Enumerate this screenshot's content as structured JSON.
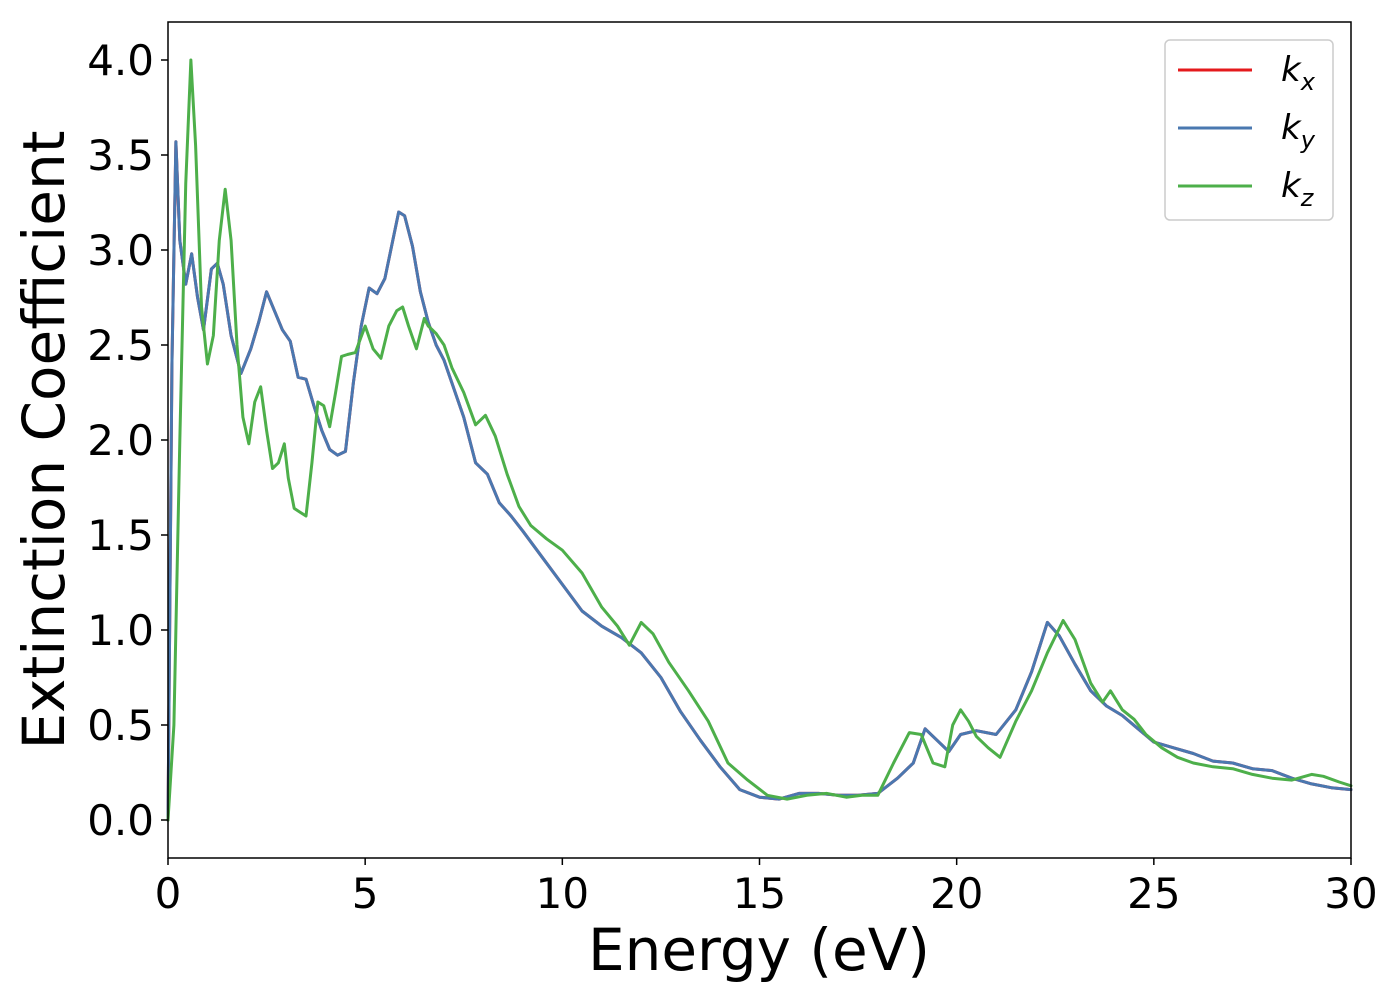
{
  "chart_data": {
    "type": "line",
    "xlabel": "Energy (eV)",
    "ylabel": "Extinction Coefficient",
    "xlim": [
      0,
      30
    ],
    "ylim": [
      -0.2,
      4.2
    ],
    "xticks": [
      0,
      5,
      10,
      15,
      20,
      25,
      30
    ],
    "xtick_labels": [
      "0",
      "5",
      "10",
      "15",
      "20",
      "25",
      "30"
    ],
    "yticks": [
      0.0,
      0.5,
      1.0,
      1.5,
      2.0,
      2.5,
      3.0,
      3.5,
      4.0
    ],
    "ytick_labels": [
      "0.0",
      "0.5",
      "1.0",
      "1.5",
      "2.0",
      "2.5",
      "3.0",
      "3.5",
      "4.0"
    ],
    "grid": false,
    "legend_position": "top-right",
    "series": [
      {
        "name": "k",
        "subscript": "x",
        "color": "#e41a1c",
        "x": [
          0,
          0.1,
          0.2,
          0.3,
          0.45,
          0.6,
          0.75,
          0.9,
          1.1,
          1.25,
          1.4,
          1.6,
          1.85,
          2.1,
          2.3,
          2.5,
          2.7,
          2.9,
          3.1,
          3.3,
          3.5,
          3.7,
          3.9,
          4.1,
          4.3,
          4.5,
          4.7,
          4.9,
          5.1,
          5.3,
          5.5,
          5.7,
          5.85,
          6.0,
          6.2,
          6.4,
          6.6,
          6.8,
          7.0,
          7.2,
          7.5,
          7.8,
          8.1,
          8.4,
          8.7,
          9.0,
          9.5,
          10.0,
          10.5,
          11.0,
          11.5,
          12.0,
          12.5,
          13.0,
          13.5,
          14.0,
          14.5,
          15.0,
          15.5,
          16.0,
          16.5,
          17.0,
          17.5,
          18.0,
          18.5,
          18.9,
          19.2,
          19.5,
          19.8,
          20.1,
          20.5,
          21.0,
          21.5,
          21.9,
          22.3,
          22.6,
          23.0,
          23.4,
          23.8,
          24.2,
          24.6,
          25.0,
          25.5,
          26.0,
          26.5,
          27.0,
          27.5,
          28.0,
          28.5,
          29.0,
          29.5,
          30.0
        ],
        "y": [
          0.0,
          2.4,
          3.57,
          3.05,
          2.82,
          2.98,
          2.75,
          2.58,
          2.9,
          2.93,
          2.82,
          2.55,
          2.35,
          2.48,
          2.62,
          2.78,
          2.68,
          2.58,
          2.52,
          2.33,
          2.32,
          2.18,
          2.05,
          1.95,
          1.92,
          1.94,
          2.3,
          2.6,
          2.8,
          2.77,
          2.85,
          3.05,
          3.2,
          3.18,
          3.02,
          2.78,
          2.62,
          2.5,
          2.42,
          2.3,
          2.12,
          1.88,
          1.82,
          1.67,
          1.6,
          1.52,
          1.38,
          1.24,
          1.1,
          1.02,
          0.96,
          0.88,
          0.75,
          0.57,
          0.42,
          0.28,
          0.16,
          0.12,
          0.11,
          0.14,
          0.14,
          0.13,
          0.13,
          0.14,
          0.22,
          0.3,
          0.48,
          0.42,
          0.36,
          0.45,
          0.47,
          0.45,
          0.58,
          0.78,
          1.04,
          0.97,
          0.82,
          0.68,
          0.6,
          0.55,
          0.48,
          0.41,
          0.38,
          0.35,
          0.31,
          0.3,
          0.27,
          0.26,
          0.22,
          0.19,
          0.17,
          0.16
        ]
      },
      {
        "name": "k",
        "subscript": "y",
        "color": "#4a78b0",
        "x": [
          0,
          0.1,
          0.2,
          0.3,
          0.45,
          0.6,
          0.75,
          0.9,
          1.1,
          1.25,
          1.4,
          1.6,
          1.85,
          2.1,
          2.3,
          2.5,
          2.7,
          2.9,
          3.1,
          3.3,
          3.5,
          3.7,
          3.9,
          4.1,
          4.3,
          4.5,
          4.7,
          4.9,
          5.1,
          5.3,
          5.5,
          5.7,
          5.85,
          6.0,
          6.2,
          6.4,
          6.6,
          6.8,
          7.0,
          7.2,
          7.5,
          7.8,
          8.1,
          8.4,
          8.7,
          9.0,
          9.5,
          10.0,
          10.5,
          11.0,
          11.5,
          12.0,
          12.5,
          13.0,
          13.5,
          14.0,
          14.5,
          15.0,
          15.5,
          16.0,
          16.5,
          17.0,
          17.5,
          18.0,
          18.5,
          18.9,
          19.2,
          19.5,
          19.8,
          20.1,
          20.5,
          21.0,
          21.5,
          21.9,
          22.3,
          22.6,
          23.0,
          23.4,
          23.8,
          24.2,
          24.6,
          25.0,
          25.5,
          26.0,
          26.5,
          27.0,
          27.5,
          28.0,
          28.5,
          29.0,
          29.5,
          30.0
        ],
        "y": [
          0.0,
          2.4,
          3.57,
          3.05,
          2.82,
          2.98,
          2.75,
          2.58,
          2.9,
          2.93,
          2.82,
          2.55,
          2.35,
          2.48,
          2.62,
          2.78,
          2.68,
          2.58,
          2.52,
          2.33,
          2.32,
          2.18,
          2.05,
          1.95,
          1.92,
          1.94,
          2.3,
          2.6,
          2.8,
          2.77,
          2.85,
          3.05,
          3.2,
          3.18,
          3.02,
          2.78,
          2.62,
          2.5,
          2.42,
          2.3,
          2.12,
          1.88,
          1.82,
          1.67,
          1.6,
          1.52,
          1.38,
          1.24,
          1.1,
          1.02,
          0.96,
          0.88,
          0.75,
          0.57,
          0.42,
          0.28,
          0.16,
          0.12,
          0.11,
          0.14,
          0.14,
          0.13,
          0.13,
          0.14,
          0.22,
          0.3,
          0.48,
          0.42,
          0.36,
          0.45,
          0.47,
          0.45,
          0.58,
          0.78,
          1.04,
          0.97,
          0.82,
          0.68,
          0.6,
          0.55,
          0.48,
          0.41,
          0.38,
          0.35,
          0.31,
          0.3,
          0.27,
          0.26,
          0.22,
          0.19,
          0.17,
          0.16
        ]
      },
      {
        "name": "k",
        "subscript": "z",
        "color": "#4daf4a",
        "x": [
          0,
          0.15,
          0.3,
          0.45,
          0.58,
          0.7,
          0.85,
          1.0,
          1.15,
          1.3,
          1.45,
          1.6,
          1.75,
          1.9,
          2.05,
          2.2,
          2.35,
          2.5,
          2.65,
          2.8,
          2.95,
          3.05,
          3.2,
          3.35,
          3.5,
          3.65,
          3.8,
          3.95,
          4.1,
          4.25,
          4.4,
          4.55,
          4.75,
          5.0,
          5.2,
          5.4,
          5.6,
          5.8,
          5.95,
          6.1,
          6.3,
          6.5,
          6.6,
          6.8,
          7.0,
          7.2,
          7.5,
          7.8,
          8.05,
          8.3,
          8.6,
          8.9,
          9.2,
          9.6,
          10.0,
          10.5,
          11.0,
          11.4,
          11.7,
          12.0,
          12.3,
          12.7,
          13.2,
          13.7,
          14.2,
          14.7,
          15.2,
          15.7,
          16.2,
          16.7,
          17.2,
          17.6,
          18.0,
          18.4,
          18.8,
          19.1,
          19.4,
          19.7,
          19.9,
          20.1,
          20.3,
          20.5,
          20.8,
          21.1,
          21.5,
          21.9,
          22.3,
          22.7,
          23.0,
          23.4,
          23.7,
          23.9,
          24.2,
          24.5,
          24.8,
          25.2,
          25.6,
          26.0,
          26.5,
          27.0,
          27.5,
          28.0,
          28.5,
          29.0,
          29.3,
          29.7,
          30.0
        ],
        "y": [
          0.0,
          0.5,
          2.0,
          3.35,
          4.0,
          3.55,
          2.7,
          2.4,
          2.55,
          3.05,
          3.32,
          3.05,
          2.5,
          2.12,
          1.98,
          2.2,
          2.28,
          2.05,
          1.85,
          1.88,
          1.98,
          1.8,
          1.64,
          1.62,
          1.6,
          1.88,
          2.2,
          2.18,
          2.07,
          2.25,
          2.44,
          2.45,
          2.46,
          2.6,
          2.48,
          2.43,
          2.6,
          2.68,
          2.7,
          2.6,
          2.48,
          2.64,
          2.6,
          2.56,
          2.5,
          2.38,
          2.25,
          2.08,
          2.13,
          2.02,
          1.82,
          1.65,
          1.55,
          1.48,
          1.42,
          1.3,
          1.12,
          1.02,
          0.92,
          1.04,
          0.98,
          0.83,
          0.68,
          0.52,
          0.3,
          0.21,
          0.13,
          0.11,
          0.13,
          0.14,
          0.12,
          0.13,
          0.13,
          0.3,
          0.46,
          0.45,
          0.3,
          0.28,
          0.5,
          0.58,
          0.52,
          0.44,
          0.38,
          0.33,
          0.52,
          0.68,
          0.88,
          1.05,
          0.95,
          0.72,
          0.62,
          0.68,
          0.58,
          0.53,
          0.45,
          0.38,
          0.33,
          0.3,
          0.28,
          0.27,
          0.24,
          0.22,
          0.21,
          0.24,
          0.23,
          0.2,
          0.18
        ]
      }
    ]
  }
}
